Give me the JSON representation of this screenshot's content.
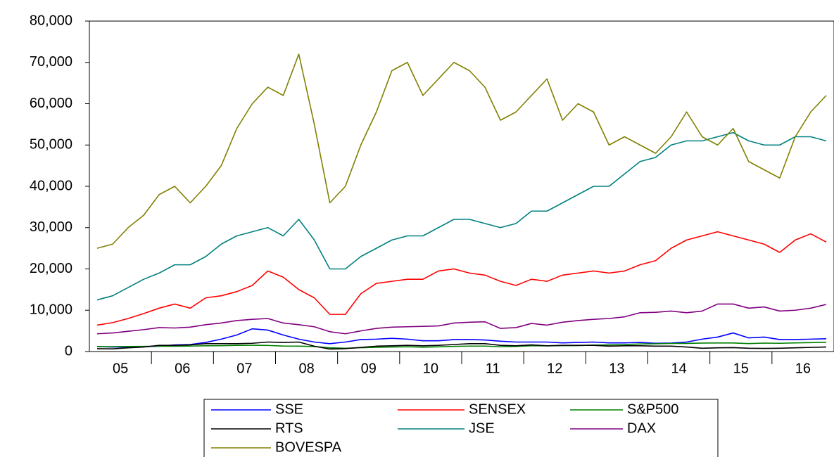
{
  "chart_data": {
    "type": "line",
    "categories": [
      "05",
      null,
      null,
      null,
      "06",
      null,
      null,
      null,
      "07",
      null,
      null,
      null,
      "08",
      null,
      null,
      null,
      "09",
      null,
      null,
      null,
      "10",
      null,
      null,
      null,
      "11",
      null,
      null,
      null,
      "12",
      null,
      null,
      null,
      "13",
      null,
      null,
      null,
      "14",
      null,
      null,
      null,
      "15",
      null,
      null,
      null,
      "16",
      null,
      null,
      null
    ],
    "ylim": [
      0,
      80000
    ],
    "yticks": [
      {
        "value": 0,
        "label": "0"
      },
      {
        "value": 10000,
        "label": "10,000"
      },
      {
        "value": 20000,
        "label": "20,000"
      },
      {
        "value": 30000,
        "label": "30,000"
      },
      {
        "value": 40000,
        "label": "40,000"
      },
      {
        "value": 50000,
        "label": "50,000"
      },
      {
        "value": 60000,
        "label": "60,000"
      },
      {
        "value": 70000,
        "label": "70,000"
      },
      {
        "value": 80000,
        "label": "80,000"
      }
    ],
    "grid": false,
    "legend": "bottom",
    "series": [
      {
        "name": "SSE",
        "color": "#0000ff",
        "values": [
          1200,
          1100,
          1100,
          1150,
          1300,
          1600,
          1700,
          2200,
          3000,
          4000,
          5500,
          5200,
          4000,
          3000,
          2300,
          1900,
          2300,
          2900,
          3000,
          3200,
          3000,
          2600,
          2600,
          2900,
          2900,
          2800,
          2500,
          2300,
          2300,
          2300,
          2100,
          2200,
          2300,
          2100,
          2100,
          2200,
          2000,
          2050,
          2300,
          3000,
          3500,
          4500,
          3300,
          3500,
          2900,
          2900,
          3000,
          3100
        ]
      },
      {
        "name": "SENSEX",
        "color": "#ff0000",
        "values": [
          6400,
          7000,
          8000,
          9200,
          10500,
          11500,
          10500,
          13000,
          13500,
          14500,
          16000,
          19500,
          18000,
          15000,
          13000,
          9000,
          9000,
          14000,
          16500,
          17000,
          17500,
          17500,
          19500,
          20000,
          19000,
          18500,
          17000,
          16000,
          17500,
          17000,
          18500,
          19000,
          19500,
          19000,
          19500,
          21000,
          22000,
          25000,
          27000,
          28000,
          29000,
          28000,
          27000,
          26000,
          24000,
          27000,
          28500,
          26500
        ]
      },
      {
        "name": "S&P500",
        "color": "#008000",
        "values": [
          1180,
          1190,
          1230,
          1250,
          1290,
          1280,
          1320,
          1400,
          1420,
          1500,
          1520,
          1470,
          1330,
          1300,
          1200,
          900,
          800,
          920,
          1040,
          1100,
          1150,
          1050,
          1130,
          1250,
          1320,
          1320,
          1150,
          1250,
          1400,
          1360,
          1440,
          1430,
          1560,
          1610,
          1680,
          1840,
          1870,
          1960,
          1970,
          2060,
          2070,
          2070,
          1920,
          2040,
          2000,
          2100,
          2160,
          2240
        ]
      },
      {
        "name": "RTS",
        "color": "#000000",
        "values": [
          700,
          650,
          900,
          1100,
          1500,
          1500,
          1600,
          1900,
          1900,
          1900,
          2000,
          2300,
          2200,
          2300,
          1300,
          600,
          700,
          1000,
          1300,
          1400,
          1500,
          1400,
          1500,
          1700,
          1900,
          1900,
          1500,
          1400,
          1600,
          1400,
          1500,
          1500,
          1500,
          1300,
          1400,
          1400,
          1300,
          1300,
          1100,
          800,
          900,
          950,
          800,
          750,
          800,
          900,
          1000,
          1100
        ]
      },
      {
        "name": "JSE",
        "color": "#008080",
        "values": [
          12500,
          13500,
          15500,
          17500,
          19000,
          21000,
          21000,
          23000,
          26000,
          28000,
          29000,
          30000,
          28000,
          32000,
          27000,
          20000,
          20000,
          23000,
          25000,
          27000,
          28000,
          28000,
          30000,
          32000,
          32000,
          31000,
          30000,
          31000,
          34000,
          34000,
          36000,
          38000,
          40000,
          40000,
          43000,
          46000,
          47000,
          50000,
          51000,
          51000,
          52000,
          53000,
          51000,
          50000,
          50000,
          52000,
          52000,
          51000
        ]
      },
      {
        "name": "DAX",
        "color": "#800080",
        "values": [
          4300,
          4500,
          4900,
          5300,
          5800,
          5700,
          5900,
          6500,
          6900,
          7500,
          7800,
          8000,
          6900,
          6500,
          6000,
          4800,
          4300,
          5000,
          5600,
          5900,
          6000,
          6100,
          6200,
          6900,
          7100,
          7200,
          5600,
          5800,
          6800,
          6400,
          7100,
          7500,
          7800,
          8000,
          8400,
          9400,
          9500,
          9800,
          9400,
          9800,
          11500,
          11500,
          10500,
          10800,
          9800,
          10000,
          10500,
          11400
        ]
      },
      {
        "name": "BOVESPA",
        "color": "#808000",
        "values": [
          25000,
          26000,
          30000,
          33000,
          38000,
          40000,
          36000,
          40000,
          45000,
          54000,
          60000,
          64000,
          62000,
          72000,
          55000,
          36000,
          40000,
          50000,
          58000,
          68000,
          70000,
          62000,
          66000,
          70000,
          68000,
          64000,
          56000,
          58000,
          62000,
          66000,
          56000,
          60000,
          58000,
          50000,
          52000,
          50000,
          48000,
          52000,
          58000,
          52000,
          50000,
          54000,
          46000,
          44000,
          42000,
          52000,
          58000,
          62000
        ]
      }
    ]
  }
}
